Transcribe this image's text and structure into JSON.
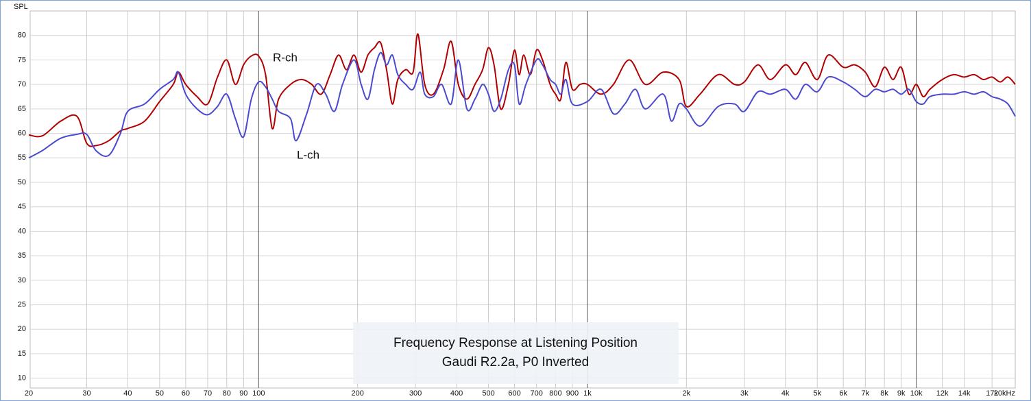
{
  "chart_data": {
    "type": "line",
    "title": [
      "Frequency Response at Listening Position",
      "Gaudi R2.2a, P0 Inverted"
    ],
    "y_axis_label": "SPL",
    "xscale": "log",
    "xlim": [
      20,
      20000
    ],
    "ylim": [
      8,
      85
    ],
    "grid": true,
    "xticks": [
      20,
      30,
      40,
      50,
      60,
      70,
      80,
      90,
      100,
      200,
      300,
      400,
      500,
      600,
      700,
      800,
      900,
      {
        "value": 1000,
        "label": "1k"
      },
      {
        "value": 2000,
        "label": "2k"
      },
      {
        "value": 3000,
        "label": "3k"
      },
      {
        "value": 4000,
        "label": "4k"
      },
      {
        "value": 5000,
        "label": "5k"
      },
      {
        "value": 6000,
        "label": "6k"
      },
      {
        "value": 7000,
        "label": "7k"
      },
      {
        "value": 8000,
        "label": "8k"
      },
      {
        "value": 9000,
        "label": "9k"
      },
      {
        "value": 10000,
        "label": "10k"
      },
      {
        "value": 12000,
        "label": "12k"
      },
      {
        "value": 14000,
        "label": "14k"
      },
      {
        "value": 17000,
        "label": "17k"
      },
      {
        "value": 20000,
        "label": "20kHz"
      }
    ],
    "yticks": [
      10,
      15,
      20,
      25,
      30,
      35,
      40,
      45,
      50,
      55,
      60,
      65,
      70,
      75,
      80
    ],
    "series": [
      {
        "name": "R-ch",
        "color": "#b00000",
        "label_color": "#d00000",
        "x": [
          20,
          22,
          25,
          28,
          30,
          32,
          35,
          38,
          40,
          45,
          50,
          55,
          57,
          60,
          65,
          70,
          75,
          80,
          85,
          90,
          95,
          100,
          105,
          110,
          115,
          125,
          135,
          145,
          155,
          165,
          175,
          185,
          195,
          205,
          215,
          225,
          235,
          245,
          255,
          265,
          280,
          295,
          305,
          320,
          340,
          365,
          385,
          405,
          430,
          455,
          480,
          500,
          520,
          545,
          575,
          600,
          620,
          640,
          670,
          700,
          730,
          770,
          800,
          830,
          860,
          900,
          950,
          1000,
          1100,
          1200,
          1340,
          1500,
          1700,
          1900,
          2000,
          2200,
          2500,
          2800,
          3000,
          3300,
          3600,
          4000,
          4300,
          4600,
          5000,
          5400,
          6000,
          6500,
          7000,
          7500,
          8000,
          8500,
          9000,
          9500,
          10000,
          10500,
          11000,
          12000,
          13000,
          14000,
          15000,
          16000,
          17000,
          18000,
          19000,
          20000
        ],
        "values": [
          59.7,
          59.5,
          62.5,
          63.5,
          58,
          57.5,
          58.5,
          60.5,
          61,
          62.5,
          66.5,
          70,
          72.5,
          70,
          67.5,
          66,
          71.5,
          75,
          70,
          74,
          75.8,
          75.8,
          72,
          61,
          67,
          70,
          71,
          70,
          68,
          72,
          76,
          73,
          76,
          72.5,
          76,
          77.5,
          78.5,
          73,
          66,
          71,
          73,
          72.5,
          80.3,
          70,
          68,
          73,
          78.8,
          70,
          67,
          70,
          73,
          77.5,
          74,
          65,
          70,
          77,
          72,
          76,
          72,
          77,
          75,
          70,
          68,
          67,
          74.5,
          69,
          70,
          70,
          68,
          70,
          75,
          70,
          72.5,
          71,
          65.5,
          68,
          72,
          70,
          70.5,
          74,
          71,
          74,
          72,
          74.5,
          71,
          76,
          73.5,
          74,
          72.5,
          69.5,
          73.5,
          71,
          73.5,
          68,
          70,
          67.5,
          69,
          71,
          72,
          71.5,
          72,
          71,
          71.5,
          70.5,
          71.5,
          70
        ]
      },
      {
        "name": "L-ch",
        "color": "#4a4ad0",
        "label_color": "#2a6fc0",
        "x": [
          20,
          22,
          25,
          28,
          30,
          32,
          35,
          38,
          40,
          45,
          50,
          55,
          57,
          60,
          65,
          70,
          75,
          80,
          85,
          90,
          95,
          100,
          105,
          110,
          115,
          125,
          130,
          140,
          150,
          160,
          170,
          180,
          195,
          205,
          215,
          225,
          235,
          245,
          255,
          265,
          280,
          295,
          310,
          320,
          340,
          360,
          385,
          405,
          430,
          455,
          480,
          500,
          520,
          545,
          575,
          600,
          620,
          650,
          700,
          730,
          770,
          800,
          830,
          860,
          900,
          1000,
          1100,
          1200,
          1300,
          1400,
          1500,
          1700,
          1800,
          1900,
          2000,
          2200,
          2500,
          2800,
          3000,
          3300,
          3600,
          4000,
          4300,
          4600,
          5000,
          5400,
          6000,
          6500,
          7000,
          7500,
          8000,
          8500,
          9000,
          9500,
          10000,
          10500,
          11000,
          12000,
          13000,
          14000,
          15000,
          16000,
          17000,
          18000,
          19000,
          20000
        ],
        "values": [
          55,
          56.5,
          59,
          59.8,
          59.8,
          56.5,
          55.5,
          60,
          64.5,
          66,
          69,
          71,
          72.5,
          68,
          65,
          63.8,
          65.5,
          68,
          63,
          59.3,
          67,
          70.5,
          69.5,
          67,
          64.5,
          63,
          58.5,
          64,
          70,
          68,
          64.5,
          70,
          75,
          70,
          67,
          73,
          76.5,
          74,
          76,
          72,
          70,
          69,
          72.5,
          68,
          67.5,
          70,
          66,
          75,
          65,
          67,
          70,
          68,
          64.5,
          67,
          73,
          74,
          66,
          70,
          75,
          74,
          71,
          70,
          68,
          71,
          66,
          66.5,
          69,
          64,
          66,
          69,
          65,
          68,
          62.5,
          66,
          65,
          61.5,
          65.5,
          66,
          64.5,
          68.5,
          68,
          69,
          67,
          70,
          68.5,
          71.5,
          70.5,
          69,
          67.5,
          69,
          68.5,
          69,
          68,
          69,
          66.5,
          66,
          67.5,
          68,
          68,
          68.5,
          68,
          68.5,
          67.5,
          67,
          66,
          63.5
        ]
      }
    ]
  }
}
